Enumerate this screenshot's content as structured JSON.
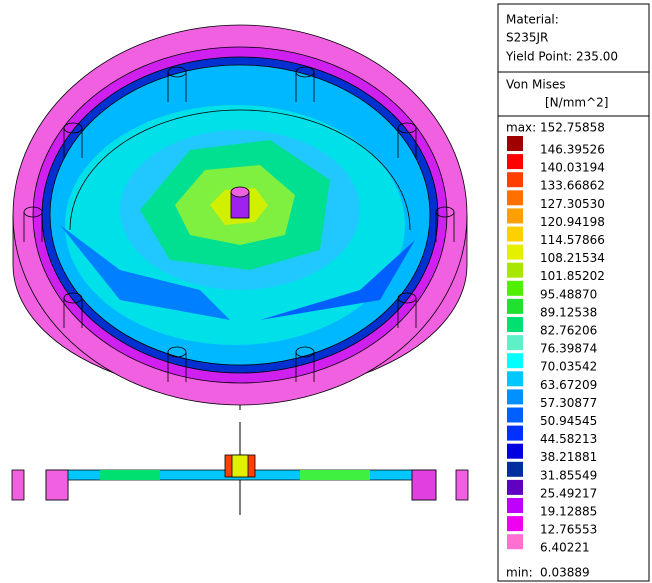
{
  "legend": {
    "material_label": "Material:",
    "material": "S235JR",
    "yield_point": "Yield Point: 235.00",
    "quantity": "Von Mises",
    "unit": "[N/mm^2]",
    "max_label": "max:",
    "max": "152.75858",
    "levels": [
      {
        "label": "146.39526",
        "color": "#a00000"
      },
      {
        "label": "140.03194",
        "color": "#ff0000"
      },
      {
        "label": "133.66862",
        "color": "#ff4000"
      },
      {
        "label": "127.30530",
        "color": "#ff7000"
      },
      {
        "label": "120.94198",
        "color": "#ffa000"
      },
      {
        "label": "114.57866",
        "color": "#ffd000"
      },
      {
        "label": "108.21534",
        "color": "#e4f000"
      },
      {
        "label": "101.85202",
        "color": "#a8e800"
      },
      {
        "label": "95.48870",
        "color": "#50f000"
      },
      {
        "label": "89.12538",
        "color": "#20e030"
      },
      {
        "label": "82.76206",
        "color": "#00e070"
      },
      {
        "label": "76.39874",
        "color": "#60f0c8"
      },
      {
        "label": "70.03542",
        "color": "#00ffff"
      },
      {
        "label": "63.67209",
        "color": "#00c8ff"
      },
      {
        "label": "57.30877",
        "color": "#0090ff"
      },
      {
        "label": "50.94545",
        "color": "#0060ff"
      },
      {
        "label": "44.58213",
        "color": "#0030ff"
      },
      {
        "label": "38.21881",
        "color": "#0000e0"
      },
      {
        "label": "31.85549",
        "color": "#0030a0"
      },
      {
        "label": "25.49217",
        "color": "#6000c0"
      },
      {
        "label": "19.12885",
        "color": "#c000ff"
      },
      {
        "label": "12.76553",
        "color": "#f000f0"
      },
      {
        "label": "6.40221",
        "color": "#ff70d0"
      }
    ],
    "min_label": "min:",
    "min": "0.03889"
  }
}
